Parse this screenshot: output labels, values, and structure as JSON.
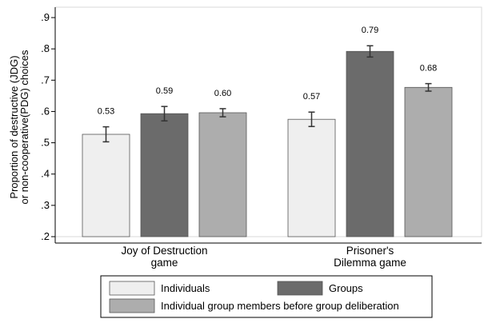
{
  "chart_data": {
    "type": "bar",
    "ylabel": "Proportion of destructive (JDG) or non-cooperative(PDG) choices",
    "ylabel_lines": [
      "Proportion of destructive (JDG)",
      "or non-cooperative(PDG) choices"
    ],
    "ylim": [
      0.2,
      0.9
    ],
    "yticks": [
      {
        "value": 0.2,
        "label": ".2"
      },
      {
        "value": 0.3,
        "label": ".3"
      },
      {
        "value": 0.4,
        "label": ".4"
      },
      {
        "value": 0.5,
        "label": ".5"
      },
      {
        "value": 0.6,
        "label": ".6"
      },
      {
        "value": 0.7,
        "label": ".7"
      },
      {
        "value": 0.8,
        "label": ".8"
      },
      {
        "value": 0.9,
        "label": ".9"
      }
    ],
    "categories": [
      {
        "lines": [
          "Joy of Destruction",
          "game"
        ]
      },
      {
        "lines": [
          "Prisoner's",
          "Dilemma game"
        ]
      }
    ],
    "series": [
      {
        "name": "Individuals",
        "color": "#efefef",
        "values": [
          0.527,
          0.575
        ],
        "labels": [
          "0.53",
          "0.57"
        ],
        "err": [
          [
            0.503,
            0.551
          ],
          [
            0.552,
            0.598
          ]
        ]
      },
      {
        "name": "Groups",
        "color": "#6b6b6b",
        "values": [
          0.593,
          0.792
        ],
        "labels": [
          "0.59",
          "0.79"
        ],
        "err": [
          [
            0.57,
            0.616
          ],
          [
            0.774,
            0.81
          ]
        ]
      },
      {
        "name": "Individual group members before group deliberation",
        "color": "#adadad",
        "values": [
          0.596,
          0.677
        ],
        "labels": [
          "0.60",
          "0.68"
        ],
        "err": [
          [
            0.583,
            0.609
          ],
          [
            0.665,
            0.689
          ]
        ]
      }
    ],
    "legend": "bottom",
    "grid": false
  }
}
